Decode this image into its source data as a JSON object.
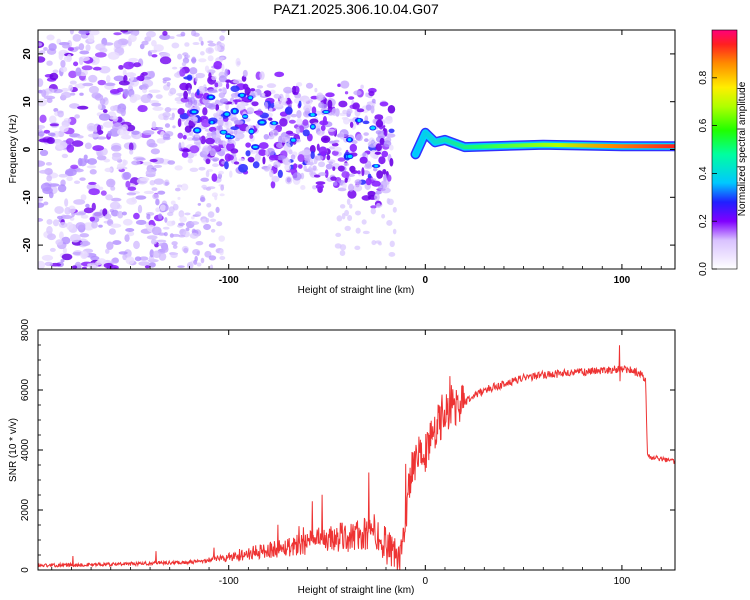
{
  "title": "PAZ1.2025.306.10.04.G07",
  "chart_data": [
    {
      "type": "heatmap",
      "name": "spectrogram",
      "xlabel": "Height of straight line (km)",
      "ylabel": "Frequency (Hz)",
      "xlim": [
        -197,
        127
      ],
      "ylim": [
        -25,
        25
      ],
      "xticks": [
        {
          "value": -100,
          "label": "-100"
        },
        {
          "value": 0,
          "label": "0"
        },
        {
          "value": 100,
          "label": "100"
        }
      ],
      "yticks": [
        {
          "value": -20,
          "label": "-20"
        },
        {
          "value": -10,
          "label": "-10"
        },
        {
          "value": 0,
          "label": "0"
        },
        {
          "value": 10,
          "label": "10"
        },
        {
          "value": 20,
          "label": "20"
        }
      ],
      "ridge": {
        "description_points": [
          {
            "x": -5,
            "y": -1.0
          },
          {
            "x": 0,
            "y": 3.5
          },
          {
            "x": 5,
            "y": 1.5
          },
          {
            "x": 10,
            "y": 2.0
          },
          {
            "x": 20,
            "y": 0.5
          },
          {
            "x": 60,
            "y": 1.0
          },
          {
            "x": 100,
            "y": 0.7
          },
          {
            "x": 127,
            "y": 0.7
          }
        ],
        "amplitude_range": [
          0.35,
          0.95
        ]
      },
      "colorbar": {
        "label": "Normalized spectral amplitude",
        "range": [
          0.0,
          1.0
        ],
        "ticks": [
          {
            "value": 0.0,
            "label": "0.0"
          },
          {
            "value": 0.2,
            "label": "0.2"
          },
          {
            "value": 0.4,
            "label": "0.4"
          },
          {
            "value": 0.6,
            "label": "0.6"
          },
          {
            "value": 0.8,
            "label": "0.8"
          }
        ]
      }
    },
    {
      "type": "line",
      "name": "snr",
      "xlabel": "Height of straight line (km)",
      "ylabel": "SNR (10 * v/v)",
      "xlim": [
        -197,
        127
      ],
      "ylim": [
        0,
        8000
      ],
      "xticks": [
        {
          "value": -100,
          "label": "-100"
        },
        {
          "value": 0,
          "label": "0"
        },
        {
          "value": 100,
          "label": "100"
        }
      ],
      "yticks": [
        {
          "value": 0,
          "label": "0"
        },
        {
          "value": 2000,
          "label": "2000"
        },
        {
          "value": 4000,
          "label": "4000"
        },
        {
          "value": 6000,
          "label": "6000"
        },
        {
          "value": 8000,
          "label": "8000"
        }
      ],
      "color": "#ee3333",
      "series": [
        {
          "name": "SNR",
          "x": [
            -197,
            -180,
            -160,
            -140,
            -120,
            -100,
            -85,
            -70,
            -55,
            -40,
            -30,
            -22,
            -17,
            -13,
            -10,
            -7,
            -4,
            0,
            5,
            10,
            15,
            20,
            25,
            30,
            40,
            50,
            60,
            70,
            80,
            90,
            100,
            105,
            110,
            112,
            113,
            115,
            120,
            127
          ],
          "y": [
            150,
            170,
            190,
            220,
            260,
            350,
            500,
            650,
            800,
            900,
            950,
            800,
            200,
            200,
            1800,
            3500,
            3800,
            3900,
            4700,
            5200,
            5400,
            5600,
            5800,
            6000,
            6200,
            6400,
            6500,
            6550,
            6600,
            6650,
            6700,
            6650,
            6500,
            6400,
            3800,
            3750,
            3700,
            3600
          ]
        }
      ]
    }
  ]
}
